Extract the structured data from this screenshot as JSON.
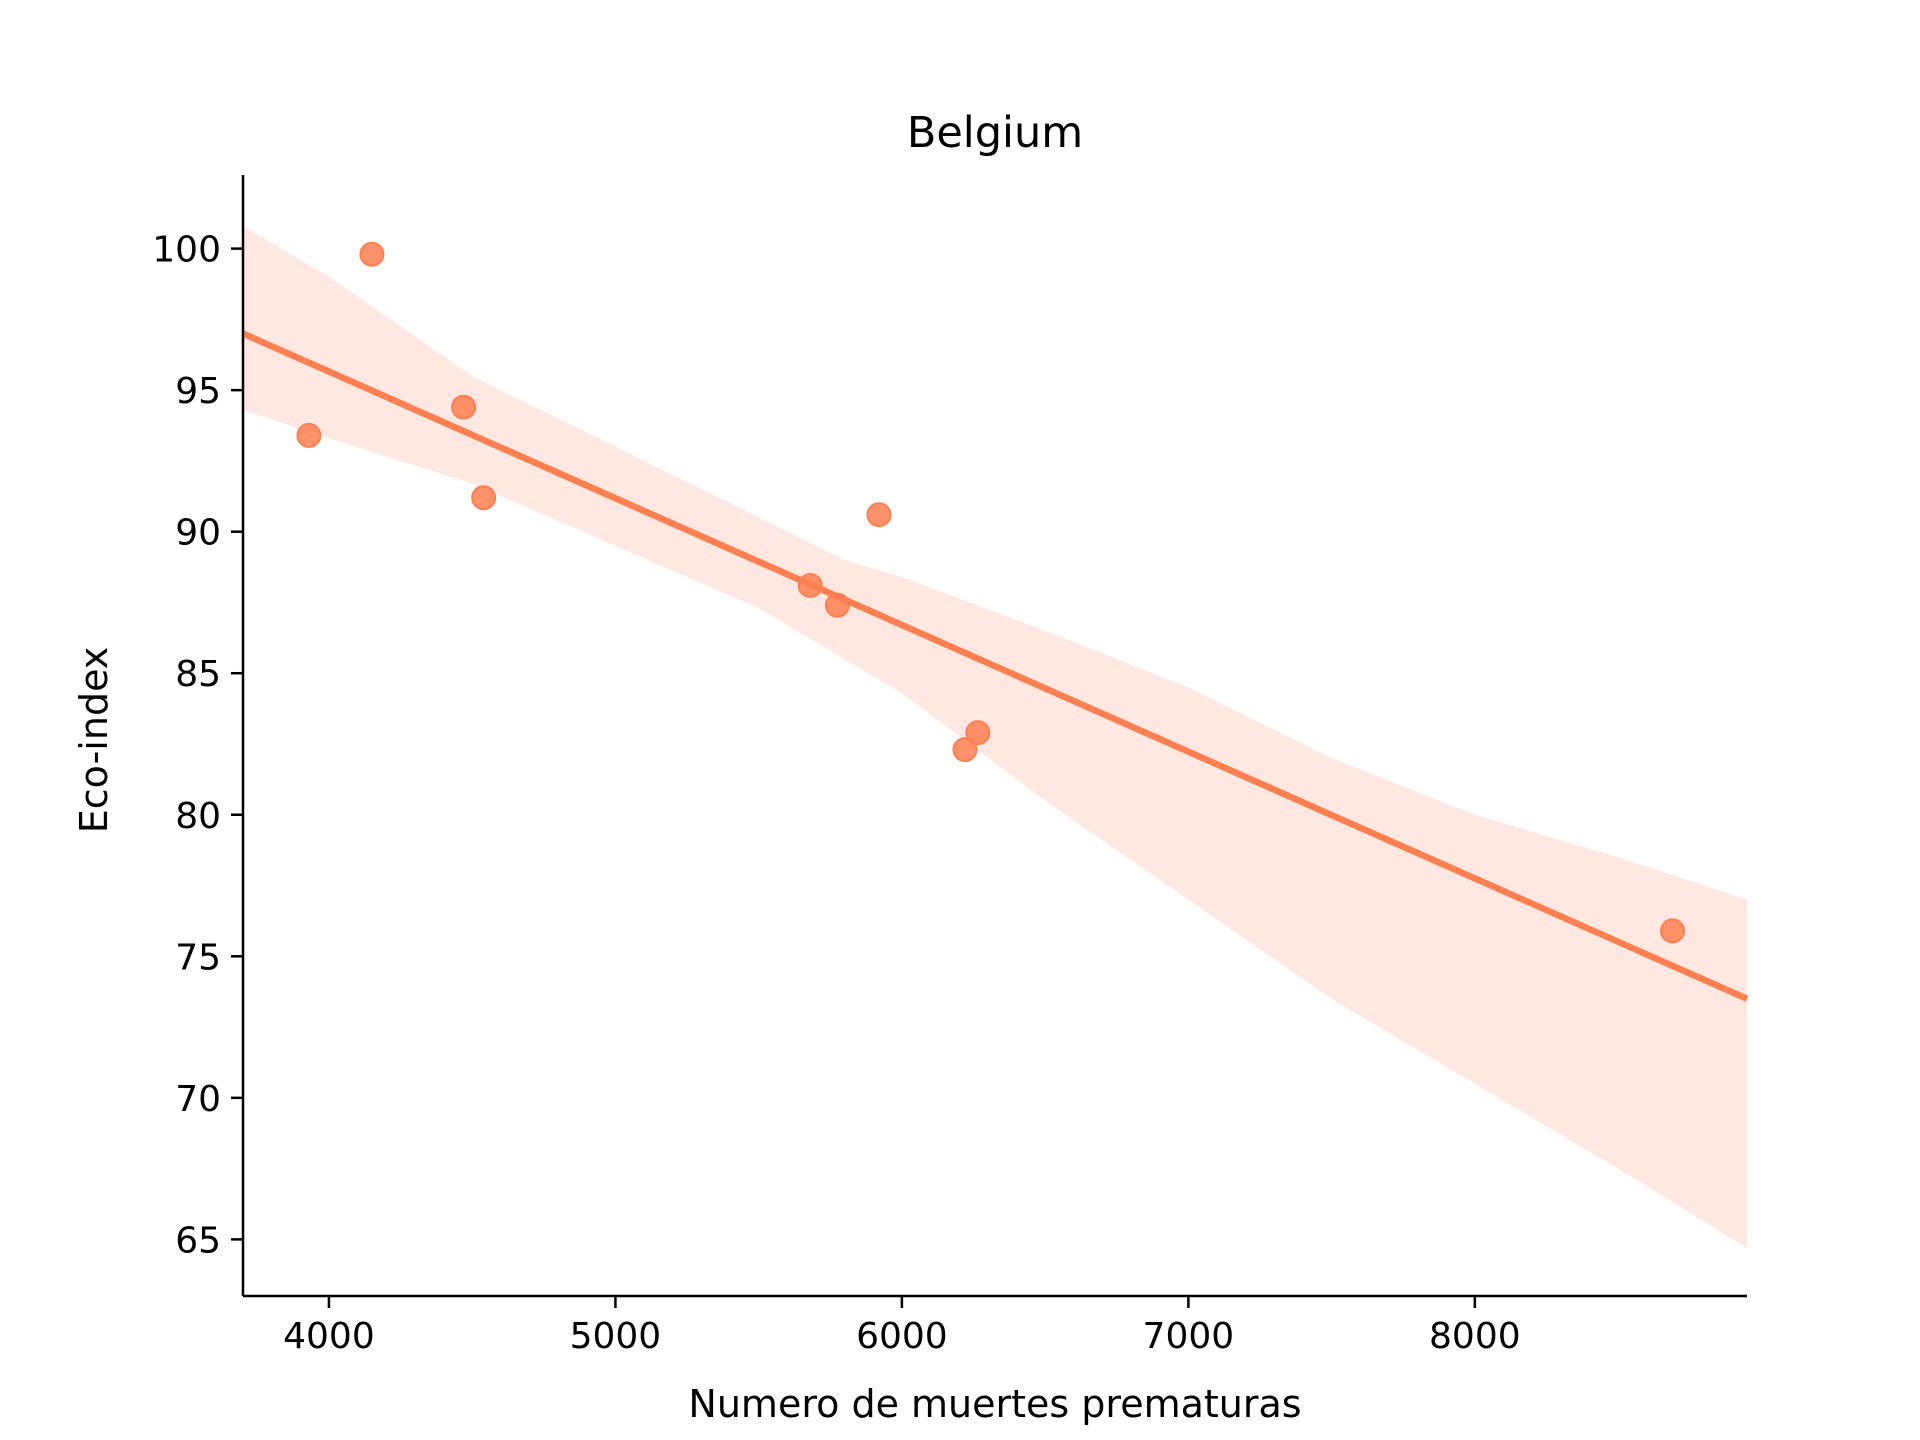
{
  "chart_data": {
    "type": "scatter",
    "title": "Belgium",
    "xlabel": "Numero de muertes prematuras",
    "ylabel": "Eco-index",
    "xlim": [
      3700,
      8950
    ],
    "ylim": [
      63,
      102.6
    ],
    "xticks": [
      4000,
      5000,
      6000,
      7000,
      8000
    ],
    "yticks": [
      65,
      70,
      75,
      80,
      85,
      90,
      95,
      100
    ],
    "grid": false,
    "color": "#ff7f50",
    "band_color": "#ffe8e2",
    "points": [
      {
        "x": 3930,
        "y": 93.4
      },
      {
        "x": 4150,
        "y": 99.8
      },
      {
        "x": 4470,
        "y": 94.4
      },
      {
        "x": 4540,
        "y": 91.2
      },
      {
        "x": 5680,
        "y": 88.1
      },
      {
        "x": 5775,
        "y": 87.4
      },
      {
        "x": 5920,
        "y": 90.6
      },
      {
        "x": 6220,
        "y": 82.3
      },
      {
        "x": 6265,
        "y": 82.9
      },
      {
        "x": 8690,
        "y": 75.9
      }
    ],
    "regression_line": [
      {
        "x": 3700,
        "y": 97.0
      },
      {
        "x": 8950,
        "y": 73.5
      }
    ],
    "confidence_band": {
      "x": [
        3700,
        4000,
        4500,
        5000,
        5500,
        5800,
        6000,
        6500,
        7000,
        7500,
        8000,
        8500,
        8950
      ],
      "upper": [
        100.8,
        99.0,
        95.5,
        93.0,
        90.5,
        89.0,
        88.4,
        86.5,
        84.5,
        82.0,
        80.0,
        78.5,
        77.0
      ],
      "lower": [
        94.3,
        93.3,
        91.7,
        89.5,
        87.3,
        85.5,
        84.3,
        80.5,
        77.0,
        73.5,
        70.5,
        67.5,
        64.7
      ]
    }
  }
}
